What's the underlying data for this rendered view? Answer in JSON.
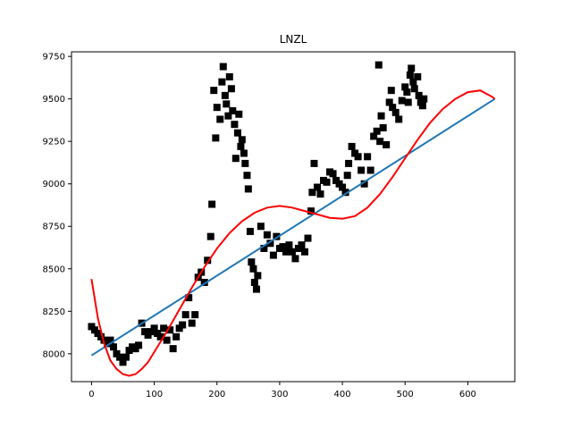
{
  "chart_data": {
    "type": "scatter",
    "title": "LNZL",
    "xlabel": "",
    "ylabel": "",
    "xlim": [
      -32,
      675
    ],
    "ylim": [
      7836,
      9777
    ],
    "xticks": [
      0,
      100,
      200,
      300,
      400,
      500,
      600
    ],
    "yticks": [
      8000,
      8250,
      8500,
      8750,
      9000,
      9250,
      9500,
      9750
    ],
    "grid": false,
    "colors": {
      "points": "#000000",
      "linear_fit": "#1f77b4",
      "poly_fit": "#ff0000"
    },
    "series": [
      {
        "kind": "scatter",
        "marker": "square",
        "points": [
          [
            0,
            8160
          ],
          [
            5,
            8140
          ],
          [
            10,
            8120
          ],
          [
            15,
            8100
          ],
          [
            20,
            8080
          ],
          [
            25,
            8060
          ],
          [
            30,
            8080
          ],
          [
            35,
            8040
          ],
          [
            40,
            8000
          ],
          [
            45,
            7980
          ],
          [
            50,
            7950
          ],
          [
            55,
            7980
          ],
          [
            60,
            8020
          ],
          [
            65,
            8040
          ],
          [
            70,
            8030
          ],
          [
            75,
            8050
          ],
          [
            80,
            8180
          ],
          [
            85,
            8130
          ],
          [
            90,
            8110
          ],
          [
            95,
            8130
          ],
          [
            100,
            8150
          ],
          [
            105,
            8120
          ],
          [
            110,
            8100
          ],
          [
            115,
            8150
          ],
          [
            120,
            8080
          ],
          [
            125,
            8140
          ],
          [
            130,
            8030
          ],
          [
            135,
            8100
          ],
          [
            140,
            8150
          ],
          [
            145,
            8170
          ],
          [
            150,
            8230
          ],
          [
            155,
            8330
          ],
          [
            160,
            8180
          ],
          [
            165,
            8230
          ],
          [
            170,
            8450
          ],
          [
            175,
            8480
          ],
          [
            180,
            8420
          ],
          [
            185,
            8550
          ],
          [
            190,
            8690
          ],
          [
            192,
            8880
          ],
          [
            195,
            9550
          ],
          [
            198,
            9270
          ],
          [
            200,
            9450
          ],
          [
            205,
            9380
          ],
          [
            208,
            9600
          ],
          [
            210,
            9690
          ],
          [
            213,
            9520
          ],
          [
            215,
            9470
          ],
          [
            218,
            9400
          ],
          [
            220,
            9630
          ],
          [
            223,
            9560
          ],
          [
            225,
            9430
          ],
          [
            228,
            9350
          ],
          [
            230,
            9150
          ],
          [
            233,
            9300
          ],
          [
            235,
            9410
          ],
          [
            238,
            9220
          ],
          [
            240,
            9260
          ],
          [
            243,
            9180
          ],
          [
            245,
            9120
          ],
          [
            248,
            9050
          ],
          [
            250,
            8970
          ],
          [
            253,
            8720
          ],
          [
            255,
            8540
          ],
          [
            258,
            8500
          ],
          [
            260,
            8420
          ],
          [
            263,
            8380
          ],
          [
            265,
            8460
          ],
          [
            270,
            8750
          ],
          [
            275,
            8620
          ],
          [
            280,
            8700
          ],
          [
            285,
            8650
          ],
          [
            290,
            8580
          ],
          [
            295,
            8690
          ],
          [
            300,
            8620
          ],
          [
            305,
            8630
          ],
          [
            310,
            8600
          ],
          [
            315,
            8640
          ],
          [
            320,
            8600
          ],
          [
            325,
            8560
          ],
          [
            330,
            8620
          ],
          [
            335,
            8640
          ],
          [
            340,
            8600
          ],
          [
            345,
            8680
          ],
          [
            350,
            8840
          ],
          [
            352,
            8950
          ],
          [
            355,
            9120
          ],
          [
            360,
            8980
          ],
          [
            365,
            8940
          ],
          [
            370,
            9020
          ],
          [
            375,
            9010
          ],
          [
            380,
            9070
          ],
          [
            385,
            9060
          ],
          [
            390,
            9020
          ],
          [
            395,
            9000
          ],
          [
            400,
            8980
          ],
          [
            405,
            8950
          ],
          [
            408,
            9050
          ],
          [
            410,
            9120
          ],
          [
            415,
            9220
          ],
          [
            420,
            9180
          ],
          [
            425,
            9160
          ],
          [
            430,
            9080
          ],
          [
            435,
            9000
          ],
          [
            440,
            9160
          ],
          [
            445,
            9080
          ],
          [
            450,
            9280
          ],
          [
            455,
            9310
          ],
          [
            458,
            9700
          ],
          [
            460,
            9250
          ],
          [
            462,
            9400
          ],
          [
            465,
            9330
          ],
          [
            470,
            9230
          ],
          [
            475,
            9480
          ],
          [
            478,
            9550
          ],
          [
            480,
            9450
          ],
          [
            485,
            9420
          ],
          [
            490,
            9380
          ],
          [
            495,
            9490
          ],
          [
            500,
            9570
          ],
          [
            503,
            9540
          ],
          [
            505,
            9480
          ],
          [
            508,
            9640
          ],
          [
            510,
            9680
          ],
          [
            513,
            9600
          ],
          [
            515,
            9560
          ],
          [
            520,
            9630
          ],
          [
            522,
            9520
          ],
          [
            525,
            9480
          ],
          [
            528,
            9460
          ],
          [
            530,
            9500
          ]
        ]
      },
      {
        "kind": "line",
        "name": "",
        "style": "linear",
        "points": [
          [
            0,
            7990
          ],
          [
            643,
            9500
          ]
        ]
      },
      {
        "kind": "line",
        "name": "",
        "style": "polynomial",
        "points": [
          [
            0,
            8440
          ],
          [
            10,
            8210
          ],
          [
            20,
            8060
          ],
          [
            30,
            7960
          ],
          [
            40,
            7910
          ],
          [
            50,
            7880
          ],
          [
            60,
            7870
          ],
          [
            70,
            7880
          ],
          [
            80,
            7910
          ],
          [
            90,
            7950
          ],
          [
            100,
            8010
          ],
          [
            120,
            8130
          ],
          [
            140,
            8260
          ],
          [
            160,
            8390
          ],
          [
            180,
            8510
          ],
          [
            200,
            8620
          ],
          [
            220,
            8710
          ],
          [
            240,
            8780
          ],
          [
            260,
            8830
          ],
          [
            280,
            8860
          ],
          [
            300,
            8870
          ],
          [
            320,
            8860
          ],
          [
            340,
            8840
          ],
          [
            360,
            8820
          ],
          [
            380,
            8800
          ],
          [
            400,
            8795
          ],
          [
            420,
            8810
          ],
          [
            440,
            8860
          ],
          [
            460,
            8940
          ],
          [
            480,
            9040
          ],
          [
            500,
            9150
          ],
          [
            520,
            9260
          ],
          [
            540,
            9360
          ],
          [
            560,
            9440
          ],
          [
            580,
            9500
          ],
          [
            600,
            9540
          ],
          [
            620,
            9550
          ],
          [
            640,
            9510
          ],
          [
            643,
            9500
          ]
        ]
      }
    ]
  }
}
